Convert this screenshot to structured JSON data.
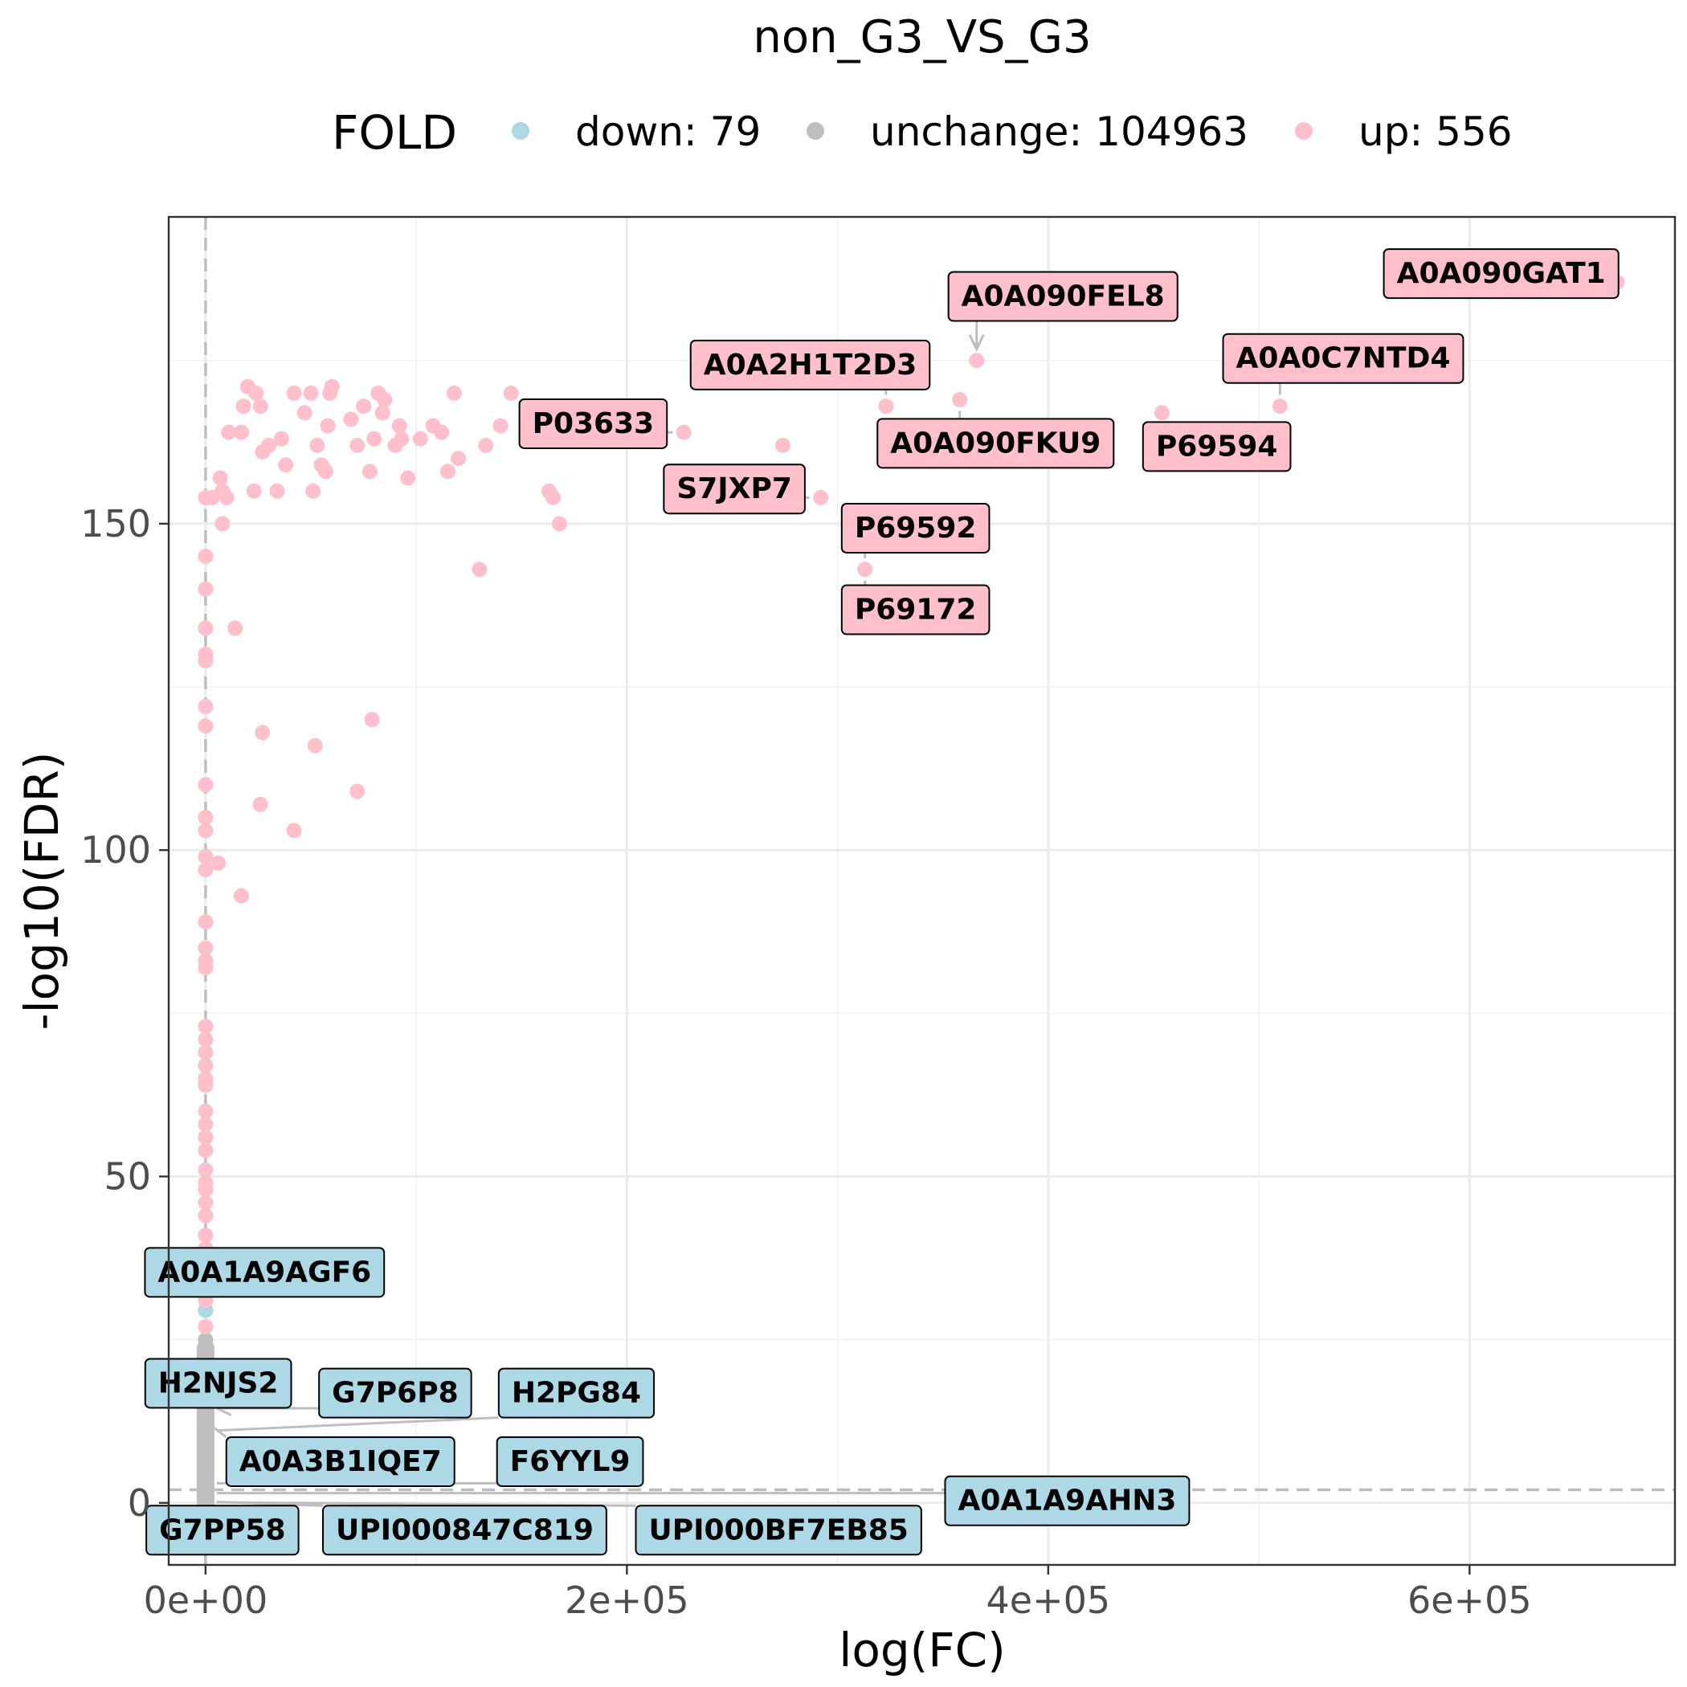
{
  "chart_data": {
    "type": "scatter",
    "title": "non_G3_VS_G3",
    "xlabel": "log(FC)",
    "ylabel": "-log10(FDR)",
    "xlim": [
      -17500,
      697500
    ],
    "ylim": [
      -9.5,
      197
    ],
    "x_ticks": [
      0,
      200000,
      400000,
      600000
    ],
    "x_tick_labels": [
      "0e+00",
      "2e+05",
      "4e+05",
      "6e+05"
    ],
    "y_ticks": [
      0,
      50,
      100,
      150
    ],
    "y_tick_labels": [
      "0",
      "50",
      "100",
      "150"
    ],
    "grid": true,
    "reference_lines": {
      "vertical_x": 0,
      "horizontal_y": 2
    },
    "legend": {
      "title": "FOLD",
      "placement": "top",
      "entries": [
        {
          "key": "down",
          "label": "down: 79",
          "color": "#ADD8E6"
        },
        {
          "key": "unchange",
          "label": "unchange: 104963",
          "color": "#BEBEBE"
        },
        {
          "key": "up",
          "label": "up: 556",
          "color": "#FFC0CB"
        }
      ]
    },
    "colors": {
      "down": "#ADD8E6",
      "unchange": "#BEBEBE",
      "up": "#FFC0CB"
    },
    "series": [
      {
        "name": "down",
        "points": [
          [
            0,
            29.5
          ],
          [
            0,
            18
          ],
          [
            0,
            12.5
          ],
          [
            0,
            3
          ],
          [
            0,
            1.5
          ],
          [
            0,
            0.5
          ],
          [
            0,
            0.2
          ],
          [
            0,
            0.1
          ],
          [
            0,
            0.3
          ],
          [
            0,
            0.4
          ]
        ]
      },
      {
        "name": "unchange",
        "points": [
          [
            0,
            0.2
          ],
          [
            0,
            1
          ],
          [
            0,
            2
          ],
          [
            0,
            3
          ],
          [
            0,
            4
          ],
          [
            0,
            5
          ],
          [
            0,
            6
          ],
          [
            0,
            7
          ],
          [
            0,
            8
          ],
          [
            0,
            9
          ],
          [
            0,
            10
          ],
          [
            0,
            11
          ],
          [
            0,
            12
          ],
          [
            0,
            13
          ],
          [
            0,
            14
          ],
          [
            0,
            15
          ],
          [
            0,
            16
          ],
          [
            0,
            17
          ],
          [
            0,
            18
          ],
          [
            0,
            19
          ],
          [
            0,
            20
          ],
          [
            0,
            21
          ],
          [
            0,
            22
          ],
          [
            0,
            23
          ],
          [
            0,
            24
          ],
          [
            0,
            25
          ]
        ]
      },
      {
        "name": "up",
        "points": [
          [
            670000,
            187
          ],
          [
            366000,
            175
          ],
          [
            323000,
            168
          ],
          [
            358000,
            169
          ],
          [
            454000,
            167
          ],
          [
            510000,
            168
          ],
          [
            227000,
            164
          ],
          [
            274000,
            162
          ],
          [
            292000,
            154
          ],
          [
            313000,
            143
          ],
          [
            145000,
            170
          ],
          [
            140000,
            165
          ],
          [
            118000,
            170
          ],
          [
            133000,
            162
          ],
          [
            120000,
            160
          ],
          [
            115000,
            158
          ],
          [
            112000,
            164
          ],
          [
            108000,
            165
          ],
          [
            102000,
            163
          ],
          [
            96000,
            157
          ],
          [
            93000,
            163
          ],
          [
            92000,
            165
          ],
          [
            90000,
            162
          ],
          [
            85000,
            169
          ],
          [
            84000,
            167
          ],
          [
            82000,
            170
          ],
          [
            80000,
            163
          ],
          [
            78000,
            158
          ],
          [
            75000,
            168
          ],
          [
            72000,
            162
          ],
          [
            69000,
            166
          ],
          [
            60000,
            171
          ],
          [
            59000,
            170
          ],
          [
            58000,
            165
          ],
          [
            57000,
            158
          ],
          [
            55000,
            159
          ],
          [
            53000,
            162
          ],
          [
            51000,
            155
          ],
          [
            50000,
            170
          ],
          [
            47000,
            167
          ],
          [
            42000,
            170
          ],
          [
            38000,
            159
          ],
          [
            36000,
            163
          ],
          [
            34000,
            155
          ],
          [
            30000,
            162
          ],
          [
            27000,
            161
          ],
          [
            26000,
            168
          ],
          [
            24000,
            170
          ],
          [
            23000,
            155
          ],
          [
            20000,
            171
          ],
          [
            18000,
            168
          ],
          [
            17000,
            164
          ],
          [
            11000,
            164
          ],
          [
            10000,
            154
          ],
          [
            8000,
            155
          ],
          [
            7000,
            157
          ],
          [
            8000,
            150
          ],
          [
            3000,
            154
          ],
          [
            0,
            154
          ],
          [
            0,
            145
          ],
          [
            0,
            140
          ],
          [
            0,
            134
          ],
          [
            0,
            130
          ],
          [
            0,
            129
          ],
          [
            0,
            122
          ],
          [
            0,
            119
          ],
          [
            0,
            110
          ],
          [
            0,
            105
          ],
          [
            0,
            103
          ],
          [
            0,
            99
          ],
          [
            0,
            97
          ],
          [
            0,
            89
          ],
          [
            0,
            85
          ],
          [
            0,
            83
          ],
          [
            0,
            82
          ],
          [
            0,
            73
          ],
          [
            0,
            71
          ],
          [
            0,
            69
          ],
          [
            0,
            67
          ],
          [
            0,
            65
          ],
          [
            0,
            64
          ],
          [
            0,
            60
          ],
          [
            0,
            58
          ],
          [
            0,
            56
          ],
          [
            0,
            54
          ],
          [
            0,
            51
          ],
          [
            0,
            49
          ],
          [
            0,
            48
          ],
          [
            0,
            46
          ],
          [
            0,
            44
          ],
          [
            0,
            41
          ],
          [
            0,
            39
          ],
          [
            0,
            37
          ],
          [
            0,
            35
          ],
          [
            0,
            33
          ],
          [
            0,
            31
          ],
          [
            0,
            27
          ],
          [
            163000,
            155
          ],
          [
            165000,
            154
          ],
          [
            168000,
            150
          ],
          [
            130000,
            143
          ],
          [
            14000,
            134
          ],
          [
            27000,
            118
          ],
          [
            26000,
            107
          ],
          [
            42000,
            103
          ],
          [
            52000,
            116
          ],
          [
            72000,
            109
          ],
          [
            79000,
            120
          ],
          [
            6000,
            98
          ],
          [
            17000,
            93
          ]
        ]
      }
    ],
    "annotations": [
      {
        "text": "A0A090GAT1",
        "group": "up",
        "x": 670000,
        "y": 187,
        "lx": 615000,
        "ly": 188.5
      },
      {
        "text": "A0A090FEL8",
        "group": "up",
        "x": 366000,
        "y": 175,
        "lx": 407000,
        "ly": 185,
        "arrow": true
      },
      {
        "text": "A0A2H1T2D3",
        "group": "up",
        "x": 323000,
        "y": 168,
        "lx": 287000,
        "ly": 174.5
      },
      {
        "text": "A0A0C7NTD4",
        "group": "up",
        "x": 510000,
        "y": 168,
        "lx": 540000,
        "ly": 175.5
      },
      {
        "text": "P03633",
        "group": "up",
        "x": 227000,
        "y": 164,
        "lx": 184000,
        "ly": 165.5
      },
      {
        "text": "A0A090FKU9",
        "group": "up",
        "x": 358000,
        "y": 169,
        "lx": 375000,
        "ly": 162.5
      },
      {
        "text": "P69594",
        "group": "up",
        "x": 454000,
        "y": 167,
        "lx": 480000,
        "ly": 162
      },
      {
        "text": "S7JXP7",
        "group": "up",
        "x": 292000,
        "y": 154,
        "lx": 251000,
        "ly": 155.5
      },
      {
        "text": "P69592",
        "group": "up",
        "x": 313000,
        "y": 143,
        "lx": 337000,
        "ly": 149.5
      },
      {
        "text": "P69172",
        "group": "up",
        "x": 313000,
        "y": 143,
        "lx": 337000,
        "ly": 137
      },
      {
        "text": "A0A1A9AGF6",
        "group": "down",
        "x": 0,
        "y": 29.5,
        "lx": 28000,
        "ly": 35.5
      },
      {
        "text": "H2NJS2",
        "group": "down",
        "x": 0,
        "y": 18,
        "lx": 6000,
        "ly": 18.5
      },
      {
        "text": "G7P6P8",
        "group": "down",
        "x": 0,
        "y": 14.5,
        "lx": 90000,
        "ly": 17,
        "arrow": true
      },
      {
        "text": "H2PG84",
        "group": "down",
        "x": 0,
        "y": 11,
        "lx": 176000,
        "ly": 17
      },
      {
        "text": "A0A3B1IQE7",
        "group": "down",
        "x": 0,
        "y": 12.5,
        "lx": 64000,
        "ly": 6.5
      },
      {
        "text": "F6YYL9",
        "group": "down",
        "x": 0,
        "y": 3,
        "lx": 173000,
        "ly": 6.5
      },
      {
        "text": "A0A1A9AHN3",
        "group": "down",
        "x": 0,
        "y": 1.5,
        "lx": 409000,
        "ly": 0.5
      },
      {
        "text": "G7PP58",
        "group": "down",
        "x": 0,
        "y": 0.5,
        "lx": 8000,
        "ly": -4
      },
      {
        "text": "UPI000847C819",
        "group": "down",
        "x": 0,
        "y": 0.2,
        "lx": 123000,
        "ly": -4
      },
      {
        "text": "UPI000BF7EB85",
        "group": "down",
        "x": 0,
        "y": 0.1,
        "lx": 272000,
        "ly": -4
      }
    ]
  }
}
